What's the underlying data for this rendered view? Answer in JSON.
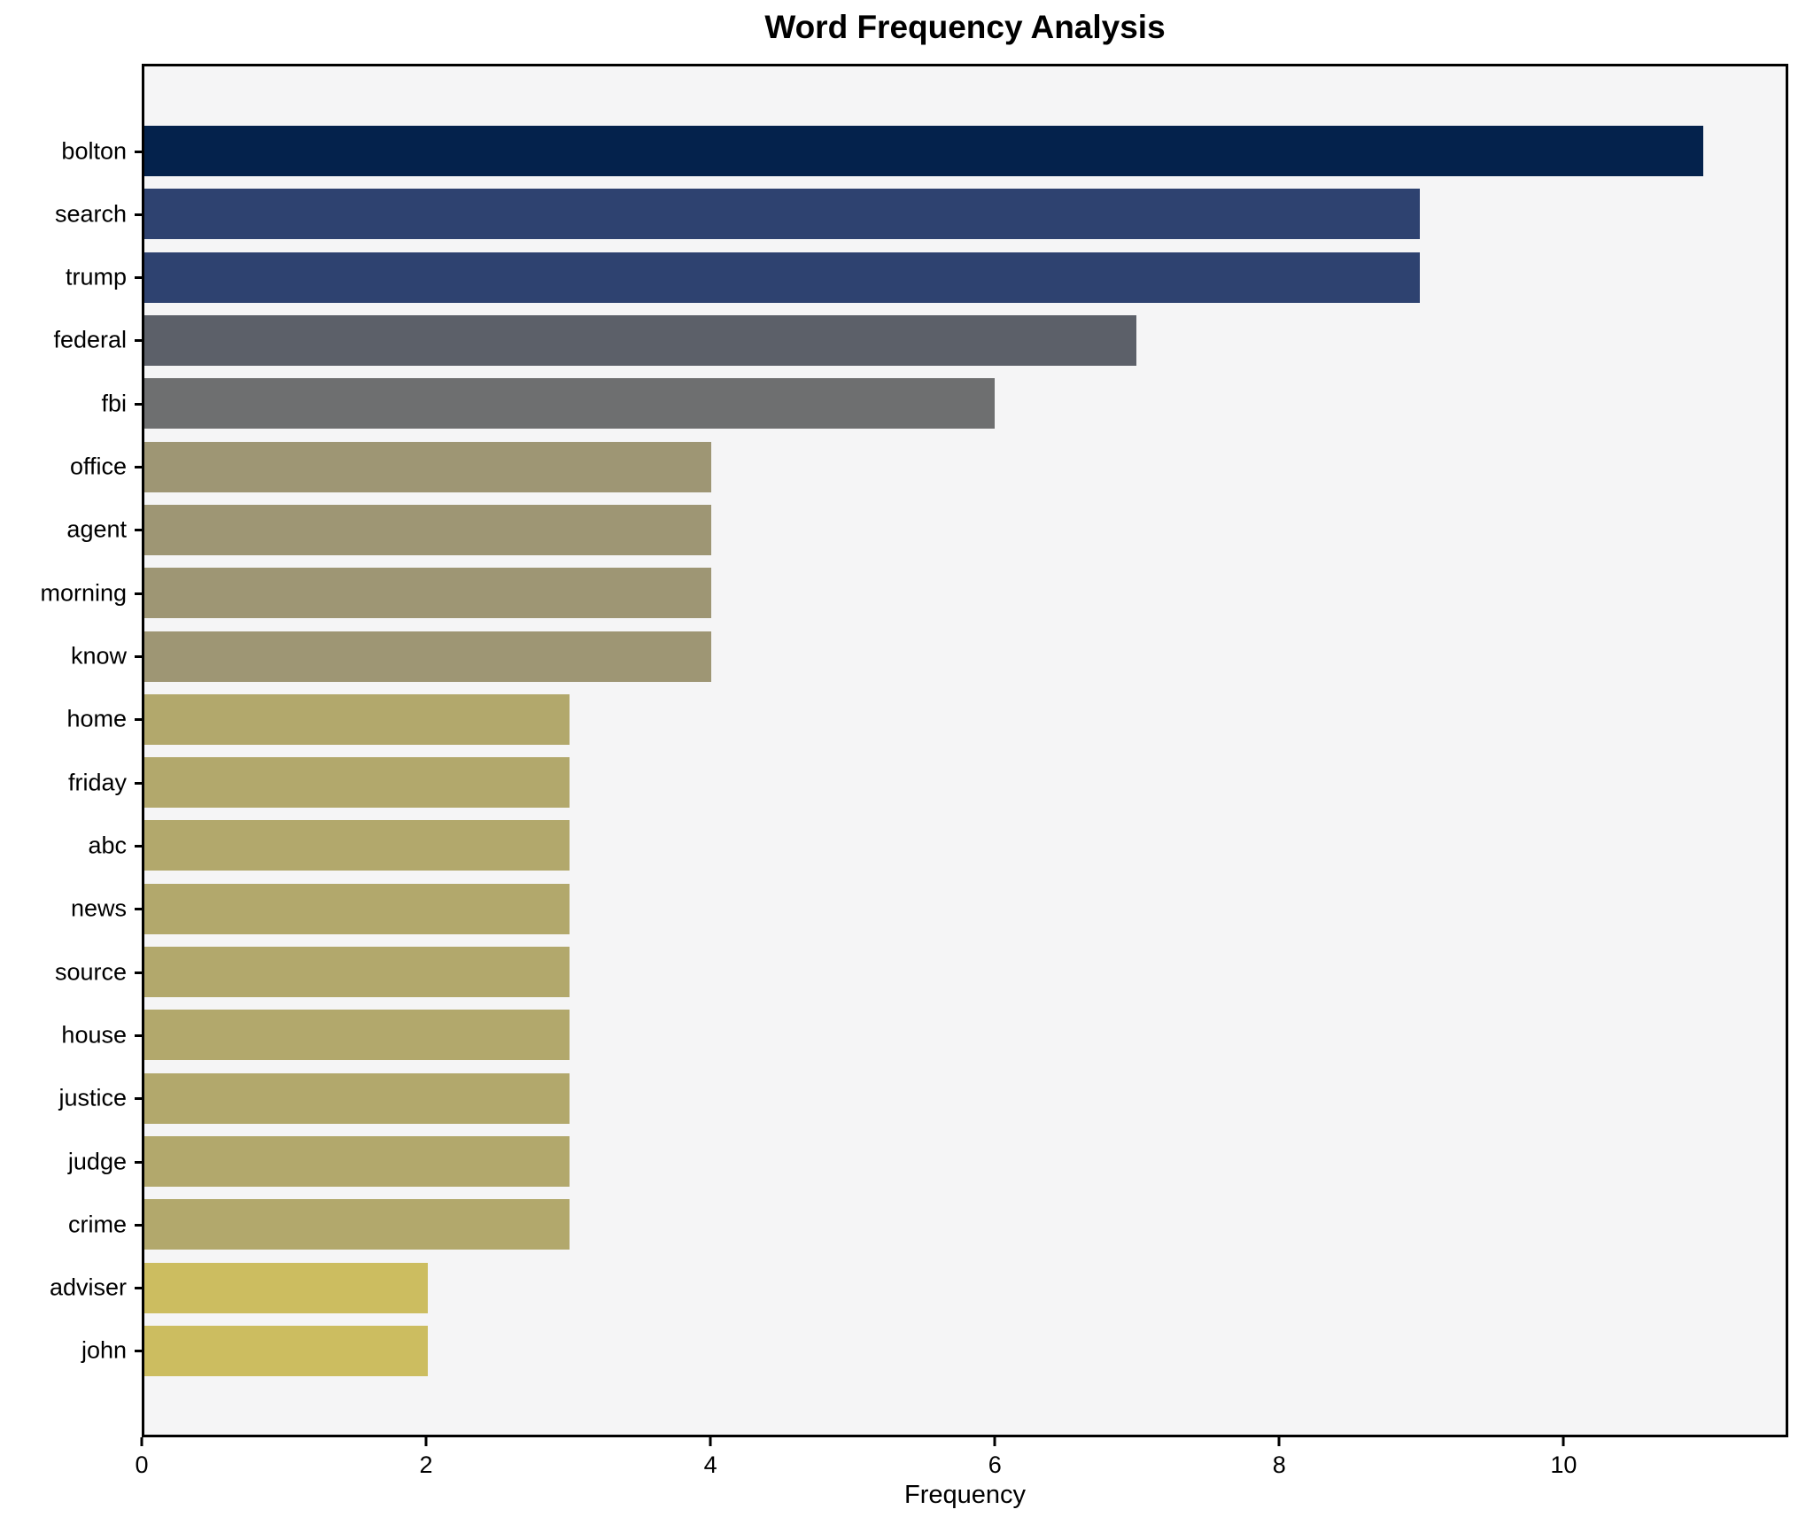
{
  "chart_data": {
    "type": "bar",
    "orientation": "horizontal",
    "title": "Word Frequency Analysis",
    "xlabel": "Frequency",
    "ylabel": "",
    "categories": [
      "bolton",
      "search",
      "trump",
      "federal",
      "fbi",
      "office",
      "agent",
      "morning",
      "know",
      "home",
      "friday",
      "abc",
      "news",
      "source",
      "house",
      "justice",
      "judge",
      "crime",
      "adviser",
      "john"
    ],
    "values": [
      11,
      9,
      9,
      7,
      6,
      4,
      4,
      4,
      4,
      3,
      3,
      3,
      3,
      3,
      3,
      3,
      3,
      3,
      2,
      2
    ],
    "bar_colors": [
      "#04224c",
      "#2e4270",
      "#2e4270",
      "#5c6069",
      "#6e6f70",
      "#9e9674",
      "#9e9674",
      "#9e9674",
      "#9e9674",
      "#b2a86c",
      "#b2a86c",
      "#b2a86c",
      "#b2a86c",
      "#b2a86c",
      "#b2a86c",
      "#b2a86c",
      "#b2a86c",
      "#b2a86c",
      "#ccbd60",
      "#ccbd60"
    ],
    "xlim": [
      0,
      11.58
    ],
    "xticks": [
      0,
      2,
      4,
      6,
      8,
      10
    ],
    "grid": false,
    "legend_position": "none",
    "plot_background": "#f5f5f6",
    "frame_color": "#000000"
  }
}
